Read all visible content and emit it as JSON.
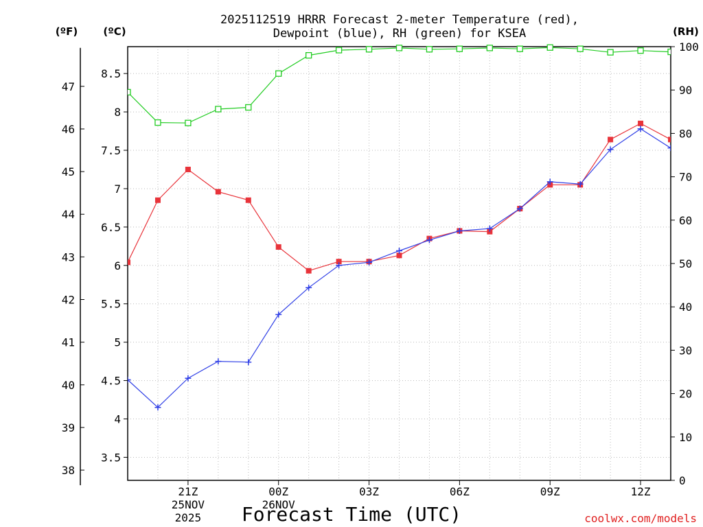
{
  "chart_data": {
    "type": "line",
    "title_line1": "2025112519 HRRR Forecast 2-meter Temperature (red),",
    "title_line2": "Dewpoint (blue), RH (green) for KSEA",
    "xlabel": "Forecast Time (UTC)",
    "credit": "coolwx.com/models",
    "axis_headers": {
      "fahrenheit": "(ºF)",
      "celsius": "(ºC)",
      "rh": "(RH)"
    },
    "x": [
      19,
      20,
      21,
      22,
      23,
      24,
      25,
      26,
      27,
      28,
      29,
      30,
      31,
      32,
      33,
      34,
      35,
      36,
      37
    ],
    "xlim": [
      19,
      37
    ],
    "x_ticks": [
      {
        "x": 21,
        "label": "21Z",
        "sub1": "25NOV",
        "sub2": "2025"
      },
      {
        "x": 24,
        "label": "00Z",
        "sub1": "26NOV",
        "sub2": ""
      },
      {
        "x": 27,
        "label": "03Z",
        "sub1": "",
        "sub2": ""
      },
      {
        "x": 30,
        "label": "06Z",
        "sub1": "",
        "sub2": ""
      },
      {
        "x": 33,
        "label": "09Z",
        "sub1": "",
        "sub2": ""
      },
      {
        "x": 36,
        "label": "12Z",
        "sub1": "",
        "sub2": ""
      }
    ],
    "ylim_c": [
      3.2,
      8.85
    ],
    "ylim_rh": [
      0,
      100
    ],
    "c_ticks": [
      "3.5",
      "4",
      "4.5",
      "5",
      "5.5",
      "6",
      "6.5",
      "7",
      "7.5",
      "8",
      "8.5"
    ],
    "f_ticks": [
      "38",
      "39",
      "40",
      "41",
      "42",
      "43",
      "44",
      "45",
      "46",
      "47"
    ],
    "rh_ticks": [
      "0",
      "10",
      "20",
      "30",
      "40",
      "50",
      "60",
      "70",
      "80",
      "90",
      "100"
    ],
    "grid": true,
    "series": [
      {
        "name": "Temperature",
        "axis": "c",
        "color": "#e8333a",
        "marker": "filled-square",
        "values": [
          6.04,
          6.85,
          7.25,
          6.96,
          6.85,
          6.24,
          5.93,
          6.05,
          6.05,
          6.13,
          6.35,
          6.45,
          6.44,
          6.74,
          7.05,
          7.05,
          7.64,
          7.85,
          7.64
        ]
      },
      {
        "name": "Dewpoint",
        "axis": "c",
        "color": "#2f3fe6",
        "marker": "plus",
        "values": [
          4.51,
          4.15,
          4.53,
          4.75,
          4.74,
          5.36,
          5.71,
          6.0,
          6.04,
          6.19,
          6.33,
          6.45,
          6.48,
          6.74,
          7.09,
          7.06,
          7.51,
          7.78,
          7.53
        ]
      },
      {
        "name": "RH",
        "axis": "rh",
        "color": "#22cc22",
        "marker": "open-square",
        "values": [
          89.5,
          82.5,
          82.4,
          85.6,
          86.0,
          93.8,
          98.0,
          99.2,
          99.4,
          99.7,
          99.4,
          99.5,
          99.7,
          99.5,
          99.8,
          99.5,
          98.7,
          99.1,
          98.8
        ]
      }
    ]
  }
}
